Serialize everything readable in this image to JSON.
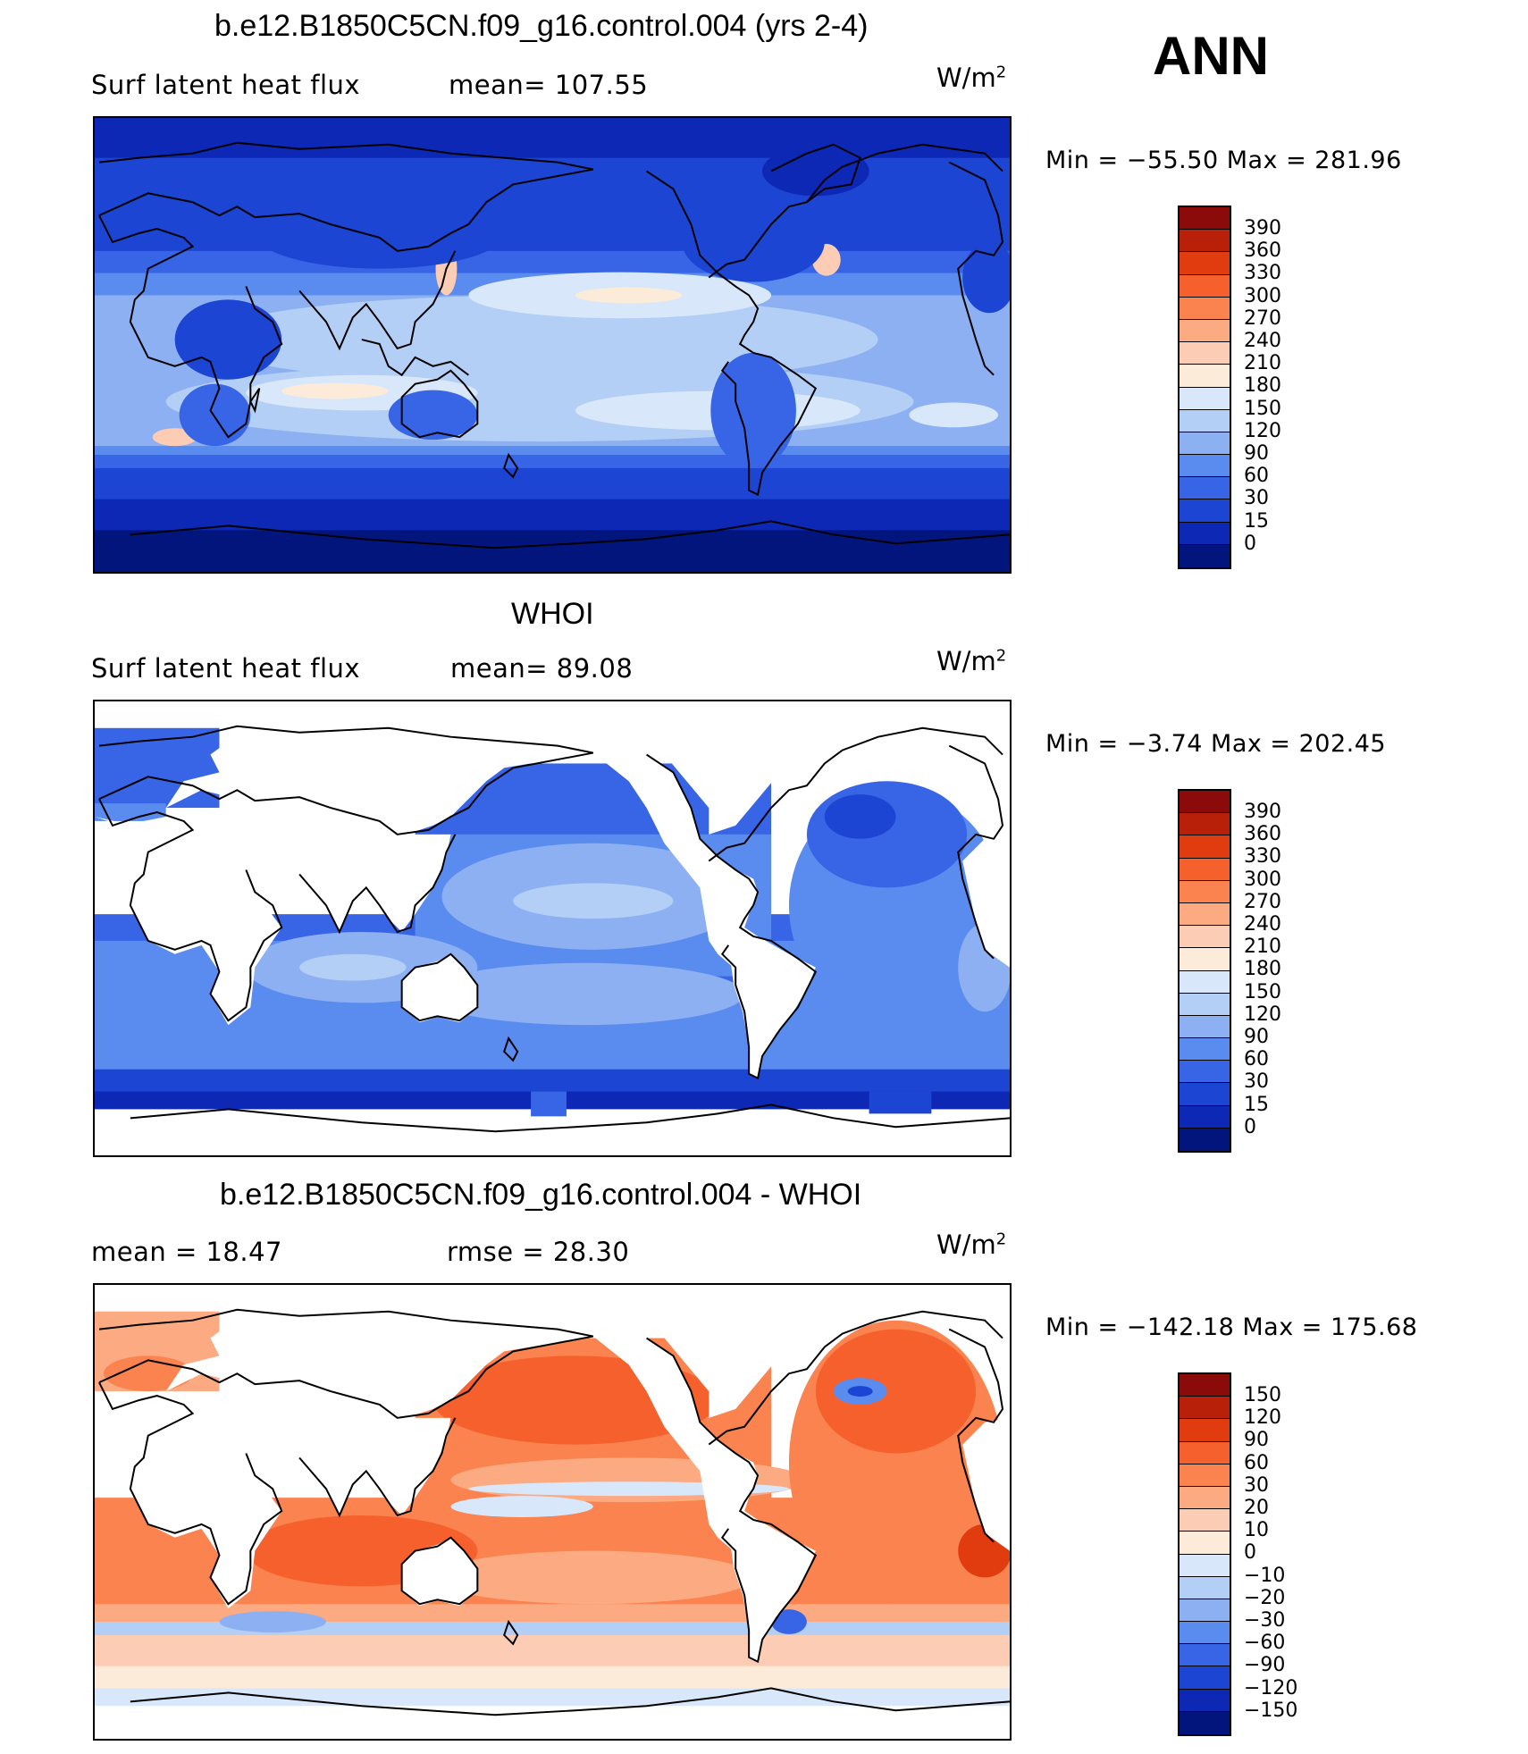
{
  "season": "ANN",
  "panels": [
    {
      "title": "b.e12.B1850C5CN.f09_g16.control.004 (yrs 2-4)",
      "left_text": "Surf  latent  heat  flux",
      "right_text": "mean=  107.55",
      "units_base": "W/m",
      "units_exp": "2",
      "minmax": "Min  =  −55.50  Max  =  281.96",
      "colorbar_labels": [
        "390",
        "360",
        "330",
        "300",
        "270",
        "240",
        "210",
        "180",
        "150",
        "120",
        "90",
        "60",
        "30",
        "15",
        "0"
      ],
      "colorbar_colors": [
        "#8b0a0a",
        "#b8200a",
        "#e03c10",
        "#f5602c",
        "#fa8350",
        "#fcaa82",
        "#fdccb4",
        "#fdebd9",
        "#d8e8fa",
        "#b4cff5",
        "#8cb0f2",
        "#5a8cef",
        "#3765e6",
        "#1b45d2",
        "#0c28b4",
        "#02157d"
      ],
      "map_kind": "model"
    },
    {
      "title": "WHOI",
      "left_text": "Surf  latent  heat  flux",
      "right_text": "mean=   89.08",
      "units_base": "W/m",
      "units_exp": "2",
      "minmax": "Min  =   −3.74  Max  =  202.45",
      "colorbar_labels": [
        "390",
        "360",
        "330",
        "300",
        "270",
        "240",
        "210",
        "180",
        "150",
        "120",
        "90",
        "60",
        "30",
        "15",
        "0"
      ],
      "colorbar_colors": [
        "#8b0a0a",
        "#b8200a",
        "#e03c10",
        "#f5602c",
        "#fa8350",
        "#fcaa82",
        "#fdccb4",
        "#fdebd9",
        "#d8e8fa",
        "#b4cff5",
        "#8cb0f2",
        "#5a8cef",
        "#3765e6",
        "#1b45d2",
        "#0c28b4",
        "#02157d"
      ],
      "map_kind": "obs"
    },
    {
      "title": "b.e12.B1850C5CN.f09_g16.control.004 - WHOI",
      "left_text": "mean  =    18.47",
      "right_text": "rmse  =    28.30",
      "units_base": "W/m",
      "units_exp": "2",
      "minmax": "Min  =  −142.18  Max  =  175.68",
      "colorbar_labels": [
        "150",
        "120",
        "90",
        "60",
        "30",
        "20",
        "10",
        "0",
        "−10",
        "−20",
        "−30",
        "−60",
        "−90",
        "−120",
        "−150"
      ],
      "colorbar_colors": [
        "#8b0a0a",
        "#b8200a",
        "#e03c10",
        "#f5602c",
        "#fa8350",
        "#fcaa82",
        "#fdccb4",
        "#fdebd9",
        "#d8e8fa",
        "#b4cff5",
        "#8cb0f2",
        "#5a8cef",
        "#3765e6",
        "#1b45d2",
        "#0c28b4",
        "#02157d"
      ],
      "map_kind": "diff"
    }
  ]
}
